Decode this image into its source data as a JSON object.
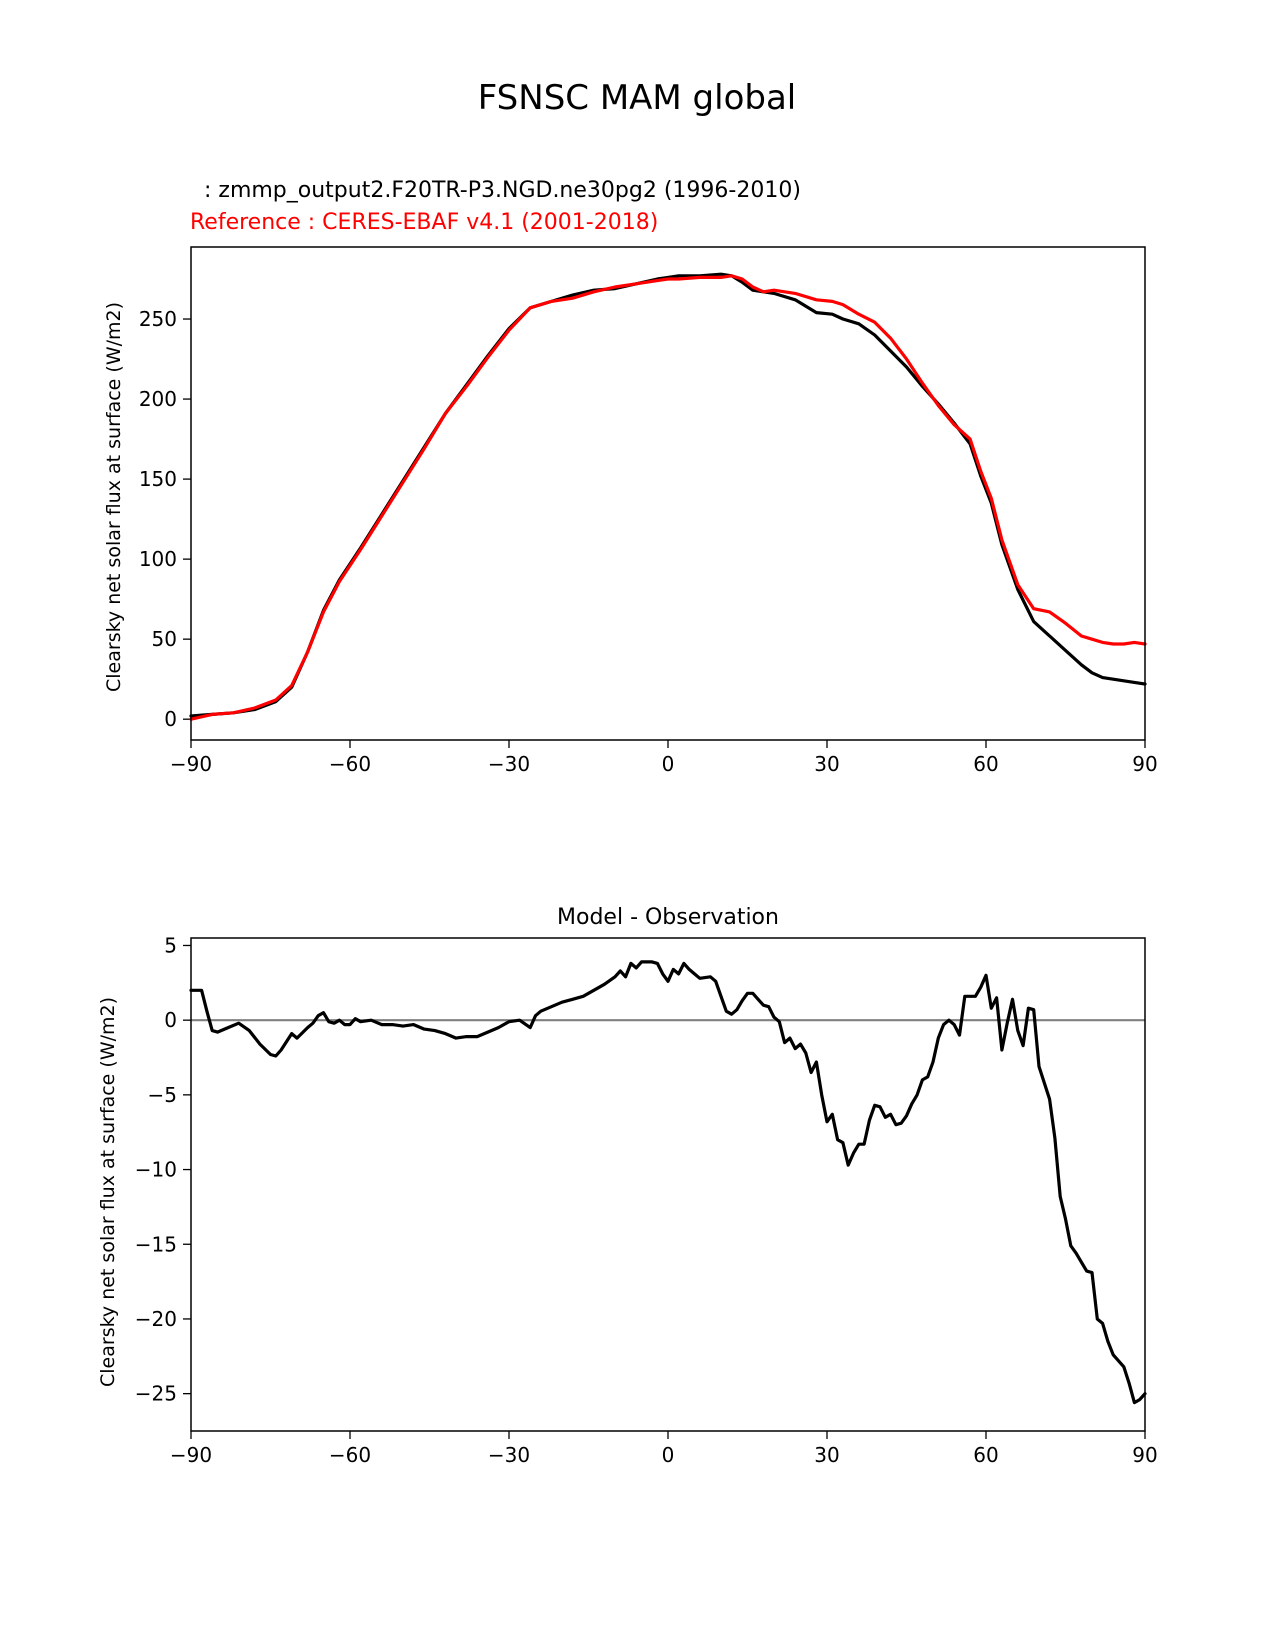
{
  "figure": {
    "title": "FSNSC MAM global"
  },
  "chart_data": [
    {
      "type": "line",
      "title": "",
      "test_label": "  : zmmp_output2.F20TR-P3.NGD.ne30pg2 (1996-2010)",
      "ref_label": "Reference : CERES-EBAF v4.1 (2001-2018)",
      "xlabel": "",
      "ylabel": "Clearsky net solar flux at surface (W/m2)",
      "xlim": [
        -90,
        90
      ],
      "ylim": [
        -13,
        295
      ],
      "xticks": [
        -90,
        -60,
        -30,
        0,
        30,
        60,
        90
      ],
      "xtick_labels": [
        "−90",
        "−60",
        "−30",
        "0",
        "30",
        "60",
        "90"
      ],
      "yticks": [
        0,
        50,
        100,
        150,
        200,
        250
      ],
      "ytick_labels": [
        "0",
        "50",
        "100",
        "150",
        "200",
        "250"
      ],
      "grid": false,
      "series": [
        {
          "name": "",
          "color": "#000000",
          "x": [
            -90,
            -86,
            -82,
            -78,
            -74,
            -71,
            -68,
            -65,
            -62,
            -58,
            -54,
            -50,
            -46,
            -42,
            -38,
            -34,
            -30,
            -26,
            -22,
            -18,
            -14,
            -10,
            -6,
            -2,
            0,
            2,
            6,
            10,
            12,
            14,
            16,
            18,
            20,
            24,
            28,
            31,
            33,
            36,
            39,
            42,
            45,
            48,
            51,
            54,
            57,
            59,
            61,
            63,
            66,
            69,
            72,
            75,
            78,
            80,
            82,
            84,
            86,
            88,
            90
          ],
          "values": [
            2,
            3,
            4,
            6,
            11,
            20,
            42,
            68,
            87,
            107,
            128,
            149,
            170,
            191,
            209,
            227,
            244,
            257,
            261,
            265,
            268,
            269,
            272,
            275,
            276,
            277,
            277,
            278,
            277,
            273,
            268,
            267,
            266,
            262,
            254,
            253,
            250,
            247,
            240,
            230,
            220,
            208,
            197,
            185,
            172,
            152,
            135,
            109,
            81,
            61,
            52,
            43,
            34,
            29,
            26,
            25,
            24,
            23,
            22
          ]
        },
        {
          "name": "",
          "color": "#ff0000",
          "x": [
            -90,
            -86,
            -82,
            -78,
            -74,
            -71,
            -68,
            -65,
            -62,
            -58,
            -54,
            -50,
            -46,
            -42,
            -38,
            -34,
            -30,
            -26,
            -22,
            -18,
            -14,
            -10,
            -6,
            -2,
            0,
            2,
            6,
            10,
            12,
            14,
            16,
            18,
            20,
            24,
            28,
            31,
            33,
            36,
            39,
            42,
            45,
            48,
            51,
            54,
            57,
            59,
            61,
            63,
            66,
            69,
            72,
            75,
            78,
            80,
            82,
            84,
            86,
            88,
            90
          ],
          "values": [
            0,
            3,
            4,
            7,
            12,
            21,
            42,
            67,
            86,
            106,
            127,
            148,
            169,
            191,
            208,
            226,
            243,
            257,
            261,
            263,
            267,
            270,
            272,
            274,
            275,
            275,
            276,
            276,
            277,
            275,
            270,
            267,
            268,
            266,
            262,
            261,
            259,
            253,
            248,
            238,
            225,
            210,
            196,
            184,
            175,
            155,
            138,
            112,
            84,
            69,
            67,
            60,
            52,
            50,
            48,
            47,
            47,
            48,
            47
          ]
        }
      ]
    },
    {
      "type": "line",
      "title": "Model - Observation",
      "xlabel": "",
      "ylabel": "Clearsky net solar flux at surface (W/m2)",
      "xlim": [
        -90,
        90
      ],
      "ylim": [
        -27.5,
        5.5
      ],
      "xticks": [
        -90,
        -60,
        -30,
        0,
        30,
        60,
        90
      ],
      "xtick_labels": [
        "−90",
        "−60",
        "−30",
        "0",
        "30",
        "60",
        "90"
      ],
      "yticks": [
        5,
        0,
        -5,
        -10,
        -15,
        -20,
        -25
      ],
      "ytick_labels": [
        "5",
        "0",
        "−5",
        "−10",
        "−15",
        "−20",
        "−25"
      ],
      "zero_line_color": "#808080",
      "grid": false,
      "series": [
        {
          "name": "",
          "color": "#000000",
          "x": [
            -90,
            -88,
            -87,
            -86,
            -85,
            -83,
            -81,
            -79,
            -77,
            -75,
            -74,
            -73,
            -71,
            -70,
            -68,
            -67,
            -66,
            -65,
            -64,
            -63,
            -62,
            -61,
            -60,
            -59,
            -58,
            -56,
            -54,
            -52,
            -50,
            -48,
            -46,
            -44,
            -42,
            -40,
            -38,
            -36,
            -34,
            -32,
            -30,
            -28,
            -26,
            -25,
            -24,
            -22,
            -20,
            -18,
            -16,
            -14,
            -12,
            -10,
            -9,
            -8,
            -7,
            -6,
            -5,
            -4,
            -3,
            -2,
            -1,
            0,
            1,
            2,
            3,
            4,
            5,
            6,
            8,
            9,
            10,
            11,
            12,
            13,
            14,
            15,
            16,
            17,
            18,
            19,
            20,
            21,
            22,
            23,
            24,
            25,
            26,
            27,
            28,
            29,
            30,
            31,
            32,
            33,
            34,
            35,
            36,
            37,
            38,
            39,
            40,
            41,
            42,
            43,
            44,
            45,
            46,
            47,
            48,
            49,
            50,
            51,
            52,
            53,
            54,
            55,
            56,
            57,
            58,
            59,
            60,
            61,
            62,
            63,
            64,
            65,
            66,
            67,
            68,
            69,
            70,
            71,
            72,
            73,
            74,
            75,
            76,
            77,
            78,
            79,
            80,
            81,
            82,
            83,
            84,
            85,
            86,
            87,
            88,
            89,
            90
          ],
          "values": [
            2.0,
            2.0,
            0.6,
            -0.7,
            -0.8,
            -0.5,
            -0.2,
            -0.7,
            -1.6,
            -2.3,
            -2.4,
            -2.0,
            -0.9,
            -1.2,
            -0.5,
            -0.2,
            0.3,
            0.5,
            -0.1,
            -0.2,
            0.0,
            -0.3,
            -0.3,
            0.1,
            -0.1,
            0.0,
            -0.3,
            -0.3,
            -0.4,
            -0.3,
            -0.6,
            -0.7,
            -0.9,
            -1.2,
            -1.1,
            -1.1,
            -0.8,
            -0.5,
            -0.1,
            0.0,
            -0.5,
            0.3,
            0.6,
            0.9,
            1.2,
            1.4,
            1.6,
            2.0,
            2.4,
            2.9,
            3.3,
            2.9,
            3.8,
            3.5,
            3.9,
            3.9,
            3.9,
            3.8,
            3.1,
            2.6,
            3.4,
            3.1,
            3.8,
            3.4,
            3.1,
            2.8,
            2.9,
            2.6,
            1.6,
            0.6,
            0.4,
            0.7,
            1.3,
            1.8,
            1.8,
            1.4,
            1.0,
            0.9,
            0.2,
            -0.1,
            -1.5,
            -1.2,
            -1.9,
            -1.6,
            -2.2,
            -3.5,
            -2.8,
            -5.0,
            -6.8,
            -6.3,
            -8.0,
            -8.2,
            -9.7,
            -8.9,
            -8.3,
            -8.3,
            -6.7,
            -5.7,
            -5.8,
            -6.5,
            -6.3,
            -7.0,
            -6.9,
            -6.4,
            -5.6,
            -5.0,
            -4.0,
            -3.8,
            -2.8,
            -1.2,
            -0.3,
            0.0,
            -0.3,
            -1.0,
            1.6,
            1.6,
            1.6,
            2.2,
            3.0,
            0.8,
            1.5,
            -2.0,
            -0.2,
            1.4,
            -0.7,
            -1.7,
            0.8,
            0.7,
            -3.1,
            -4.2,
            -5.3,
            -7.9,
            -11.8,
            -13.3,
            -15.1,
            -15.6,
            -16.2,
            -16.8,
            -16.9,
            -20.0,
            -20.3,
            -21.5,
            -22.4,
            -22.8,
            -23.2,
            -24.3,
            -25.6,
            -25.4,
            -25.0
          ]
        }
      ]
    }
  ]
}
